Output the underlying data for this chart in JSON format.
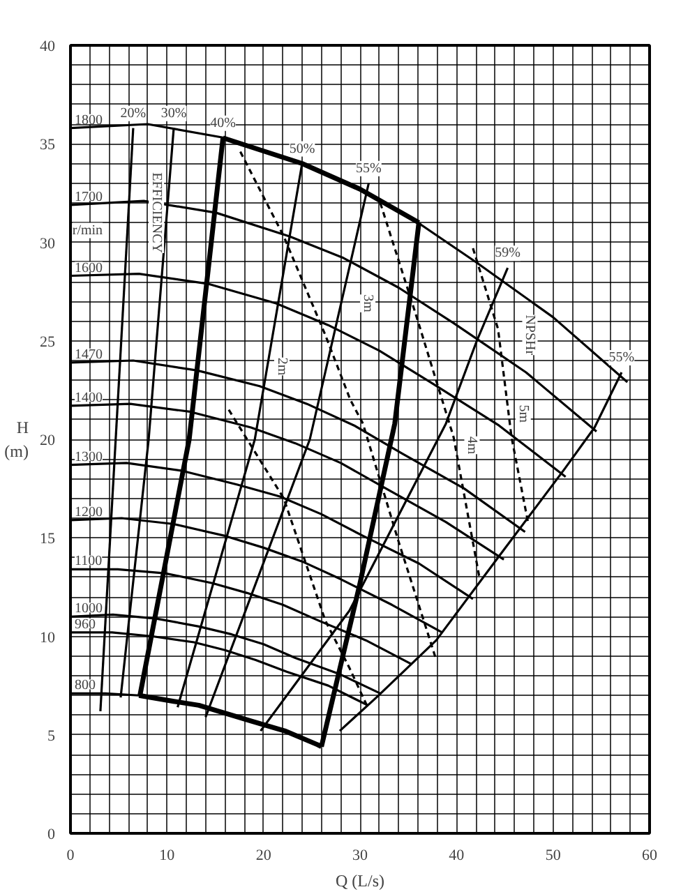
{
  "chart_data": {
    "type": "line",
    "xlabel": "Q (L/s)",
    "ylabel": "H (m)",
    "xlim": [
      0,
      60
    ],
    "ylim": [
      0,
      40
    ],
    "xticks": [
      0,
      {
        "value": 2,
        "label": null
      },
      {
        "value": 4,
        "label": null
      },
      {
        "value": 6,
        "label": null
      },
      {
        "value": 8,
        "label": null
      },
      10,
      {
        "value": 12,
        "label": null
      },
      {
        "value": 14,
        "label": null
      },
      {
        "value": 16,
        "label": null
      },
      {
        "value": 18,
        "label": null
      },
      20,
      {
        "value": 22,
        "label": null
      },
      {
        "value": 24,
        "label": null
      },
      {
        "value": 26,
        "label": null
      },
      {
        "value": 28,
        "label": null
      },
      30,
      {
        "value": 32,
        "label": null
      },
      {
        "value": 34,
        "label": null
      },
      {
        "value": 36,
        "label": null
      },
      {
        "value": 38,
        "label": null
      },
      40,
      {
        "value": 42,
        "label": null
      },
      {
        "value": 44,
        "label": null
      },
      {
        "value": 46,
        "label": null
      },
      {
        "value": 48,
        "label": null
      },
      50,
      {
        "value": 52,
        "label": null
      },
      {
        "value": 54,
        "label": null
      },
      {
        "value": 56,
        "label": null
      },
      {
        "value": 58,
        "label": null
      },
      60
    ],
    "yticks": [
      0,
      {
        "value": 1,
        "label": null
      },
      {
        "value": 2,
        "label": null
      },
      {
        "value": 3,
        "label": null
      },
      {
        "value": 4,
        "label": null
      },
      5,
      {
        "value": 6,
        "label": null
      },
      {
        "value": 7,
        "label": null
      },
      {
        "value": 8,
        "label": null
      },
      {
        "value": 9,
        "label": null
      },
      10,
      {
        "value": 11,
        "label": null
      },
      {
        "value": 12,
        "label": null
      },
      {
        "value": 13,
        "label": null
      },
      {
        "value": 14,
        "label": null
      },
      15,
      {
        "value": 16,
        "label": null
      },
      {
        "value": 17,
        "label": null
      },
      {
        "value": 18,
        "label": null
      },
      {
        "value": 19,
        "label": null
      },
      20,
      {
        "value": 21,
        "label": null
      },
      {
        "value": 22,
        "label": null
      },
      {
        "value": 23,
        "label": null
      },
      {
        "value": 24,
        "label": null
      },
      25,
      {
        "value": 26,
        "label": null
      },
      {
        "value": 27,
        "label": null
      },
      {
        "value": 28,
        "label": null
      },
      {
        "value": 29,
        "label": null
      },
      30,
      {
        "value": 31,
        "label": null
      },
      {
        "value": 32,
        "label": null
      },
      {
        "value": 33,
        "label": null
      },
      {
        "value": 34,
        "label": null
      },
      35,
      {
        "value": 36,
        "label": null
      },
      {
        "value": 37,
        "label": null
      },
      {
        "value": 38,
        "label": null
      },
      {
        "value": 39,
        "label": null
      },
      40
    ],
    "grid": true,
    "line_style": "solid",
    "marker": "none",
    "series": [
      {
        "name": "1800",
        "color": "#000000",
        "x": [
          0,
          8,
          16,
          24,
          30,
          36,
          42,
          50,
          57.7
        ],
        "values": [
          35.8,
          36.0,
          35.3,
          34.0,
          32.7,
          31.0,
          29.0,
          26.2,
          22.9
        ]
      },
      {
        "name": "1700",
        "color": "#000000",
        "x": [
          0,
          7.6,
          15.1,
          22.7,
          28.3,
          34.0,
          39.7,
          47.2,
          54.5
        ],
        "values": [
          31.9,
          32.1,
          31.5,
          30.3,
          29.2,
          27.7,
          25.9,
          23.4,
          20.4
        ]
      },
      {
        "name": "1600",
        "color": "#000000",
        "x": [
          0,
          7.1,
          14.2,
          21.3,
          26.7,
          32.0,
          37.3,
          44.4,
          51.3
        ],
        "values": [
          28.3,
          28.4,
          27.9,
          26.9,
          25.8,
          24.5,
          22.9,
          20.7,
          18.1
        ]
      },
      {
        "name": "1470",
        "color": "#000000",
        "x": [
          0,
          6.5,
          13.1,
          19.6,
          24.5,
          29.4,
          34.3,
          40.8,
          47.1
        ],
        "values": [
          23.9,
          24.0,
          23.5,
          22.7,
          21.8,
          20.7,
          19.3,
          17.5,
          15.3
        ]
      },
      {
        "name": "1400",
        "color": "#000000",
        "x": [
          0,
          6.2,
          12.4,
          18.7,
          23.3,
          28.0,
          32.7,
          38.9,
          44.9
        ],
        "values": [
          21.7,
          21.8,
          21.4,
          20.6,
          19.8,
          18.8,
          17.5,
          15.8,
          13.9
        ]
      },
      {
        "name": "1300",
        "color": "#000000",
        "x": [
          0,
          5.8,
          11.6,
          17.3,
          21.7,
          26.0,
          30.3,
          36.1,
          41.7
        ],
        "values": [
          18.7,
          18.8,
          18.4,
          17.7,
          17.1,
          16.2,
          15.1,
          13.7,
          11.9
        ]
      },
      {
        "name": "1200",
        "color": "#000000",
        "x": [
          0,
          5.3,
          10.7,
          16.0,
          20.0,
          24.0,
          28.0,
          33.3,
          38.5
        ],
        "values": [
          15.9,
          16.0,
          15.7,
          15.1,
          14.5,
          13.8,
          12.9,
          11.6,
          10.2
        ]
      },
      {
        "name": "1100",
        "color": "#000000",
        "x": [
          0,
          4.9,
          9.8,
          14.7,
          18.3,
          22.0,
          25.7,
          30.6,
          35.3
        ],
        "values": [
          13.4,
          13.4,
          13.2,
          12.7,
          12.2,
          11.6,
          10.8,
          9.8,
          8.6
        ]
      },
      {
        "name": "1000",
        "color": "#000000",
        "x": [
          0,
          4.4,
          8.9,
          13.3,
          16.7,
          20.0,
          23.3,
          27.8,
          32.1
        ],
        "values": [
          11.0,
          11.1,
          10.9,
          10.5,
          10.1,
          9.6,
          8.9,
          8.1,
          7.1
        ]
      },
      {
        "name": "960",
        "color": "#000000",
        "x": [
          0,
          4.3,
          8.5,
          12.8,
          16.0,
          19.2,
          22.4,
          26.7,
          30.8
        ],
        "values": [
          10.2,
          10.2,
          10.0,
          9.7,
          9.3,
          8.8,
          8.2,
          7.5,
          6.5
        ]
      },
      {
        "name": "800",
        "color": "#000000",
        "x": [
          0,
          3.6,
          7.1,
          10.7,
          13.3,
          16.0,
          18.7,
          22.2,
          25.6
        ],
        "values": [
          7.1,
          7.1,
          7.0,
          6.7,
          6.5,
          6.1,
          5.7,
          5.2,
          4.5
        ]
      },
      {
        "name": "20%",
        "color": "#000000",
        "x": [
          3.1,
          6.5
        ],
        "values": [
          6.2,
          35.8
        ]
      },
      {
        "name": "30%",
        "color": "#000000",
        "x": [
          5.2,
          8.1,
          10.7
        ],
        "values": [
          6.9,
          20.0,
          35.8
        ]
      },
      {
        "color": "#000000",
        "x": [
          7.2,
          12.3,
          15.8
        ],
        "values": [
          7.0,
          20.0,
          35.3
        ]
      },
      {
        "name": "50%",
        "color": "#000000",
        "x": [
          11.1,
          19.1,
          24.0
        ],
        "values": [
          6.4,
          20.0,
          34.0
        ]
      },
      {
        "name": "55%",
        "color": "#000000",
        "x": [
          14.0,
          24.8,
          30.9
        ],
        "values": [
          5.9,
          20.0,
          33.0
        ]
      },
      {
        "name": "59%",
        "color": "#000000",
        "x": [
          19.7,
          28.9,
          38.9,
          42.1,
          45.3
        ],
        "values": [
          5.2,
          11.3,
          20.8,
          25.0,
          28.7
        ]
      },
      {
        "name": "55%",
        "color": "#000000",
        "x": [
          27.9,
          31.7,
          37.9,
          44.3,
          51.2,
          54.3,
          57.1
        ],
        "values": [
          5.2,
          6.9,
          9.8,
          14.0,
          18.5,
          20.6,
          23.4
        ]
      },
      {
        "color": "#000000",
        "x": [
          15.8,
          24.0,
          30.0,
          36.1
        ],
        "values": [
          35.3,
          34.0,
          32.7,
          31.0
        ]
      },
      {
        "color": "#000000",
        "x": [
          7.1,
          10.7,
          13.3,
          16.0,
          18.7,
          22.2,
          25.6,
          26.0
        ],
        "values": [
          7.0,
          6.7,
          6.5,
          6.1,
          5.7,
          5.2,
          4.5,
          4.4
        ]
      },
      {
        "color": "#000000",
        "x": [
          26.0,
          30.0,
          33.6,
          36.1
        ],
        "values": [
          4.4,
          12.7,
          20.8,
          31.0
        ]
      },
      {
        "color": "#000000",
        "line_style": "dashed",
        "x": [
          16.4,
          22.1,
          26.4,
          28.9,
          30.7
        ],
        "values": [
          21.5,
          17.0,
          10.8,
          8.4,
          6.5
        ]
      },
      {
        "color": "#000000",
        "line_style": "dashed",
        "x": [
          17.6,
          22.1,
          26.4,
          29.0,
          30.3,
          34.0,
          37.9
        ],
        "values": [
          34.6,
          30.3,
          25.3,
          22.0,
          20.8,
          14.8,
          8.8
        ]
      },
      {
        "color": "#000000",
        "line_style": "dashed",
        "x": [
          32.1,
          36.0,
          39.7,
          42.4
        ],
        "values": [
          32.0,
          26.0,
          20.1,
          12.9
        ]
      },
      {
        "color": "#000000",
        "line_style": "dashed",
        "x": [
          41.7,
          44.3,
          45.7,
          47.4
        ],
        "values": [
          29.7,
          25.6,
          20.1,
          15.8
        ]
      }
    ],
    "annotations": [
      {
        "text": "40%",
        "x": 15.8,
        "y": 35.3
      },
      "EFFICIENCY",
      "r/min",
      "2m",
      "3m",
      "4m",
      "NPSHr",
      "5m"
    ]
  }
}
